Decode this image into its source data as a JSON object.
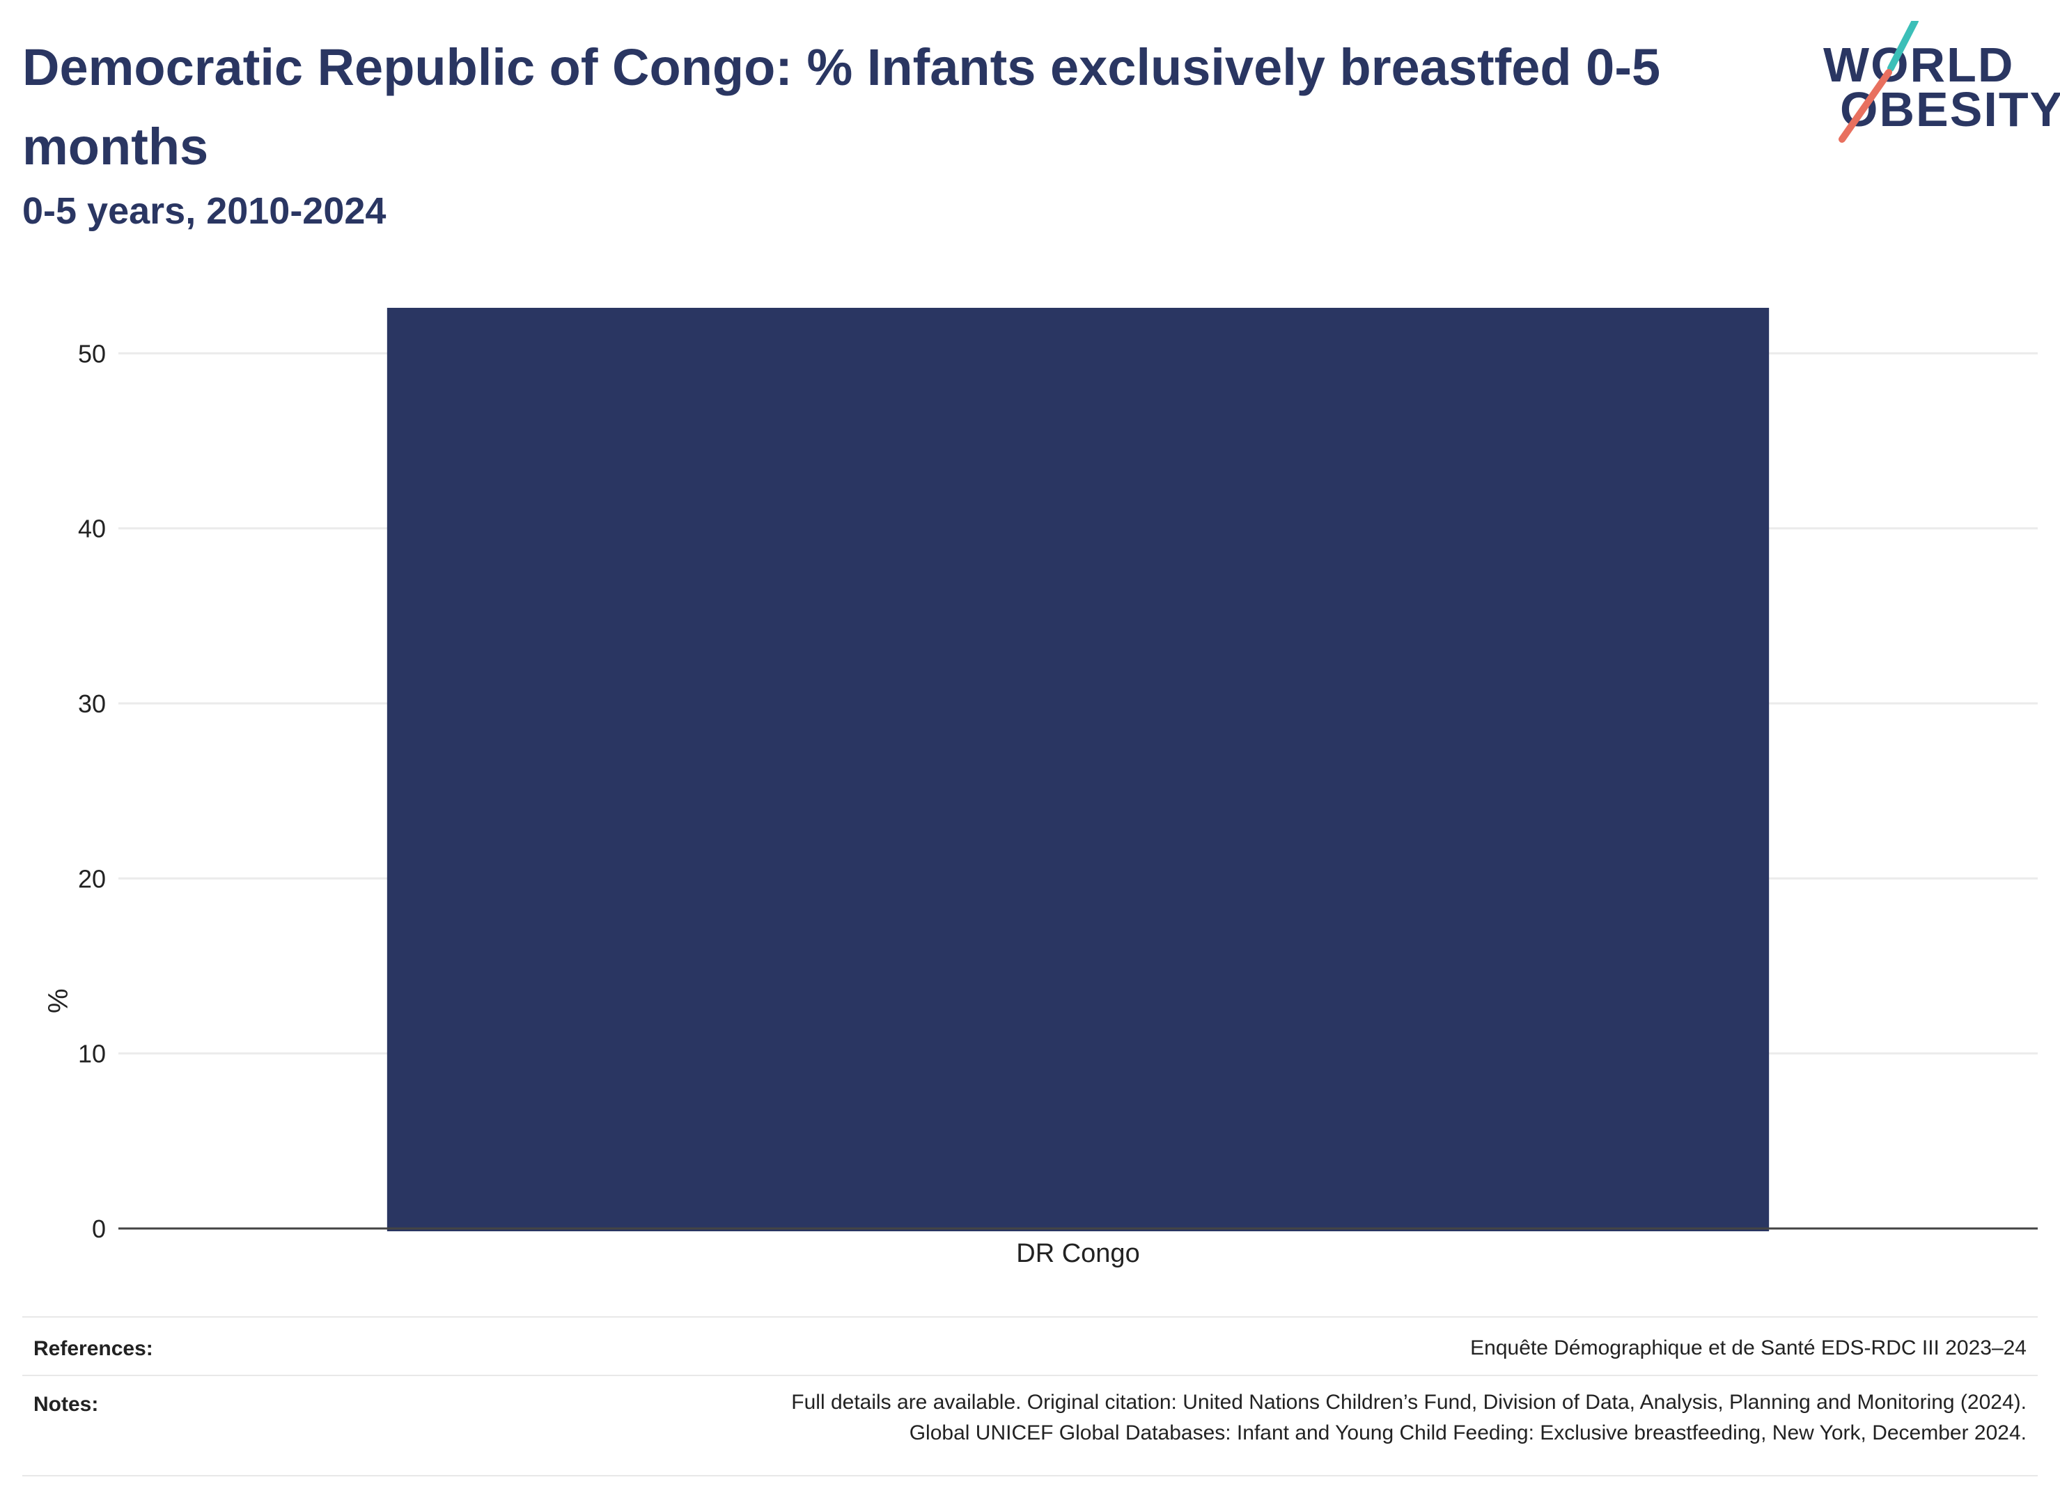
{
  "title": "Democratic Republic of Congo: % Infants exclusively breastfed 0-5 months",
  "subtitle": "0-5 years, 2010-2024",
  "logo": {
    "line1": "WORLD",
    "line2": "OBESITY"
  },
  "chart_data": {
    "type": "bar",
    "categories": [
      "DR Congo"
    ],
    "values": [
      52.6
    ],
    "xlabel": "",
    "ylabel": "%",
    "ylim": [
      0,
      52.6
    ],
    "yticks": [
      0,
      10,
      20,
      30,
      40,
      50
    ],
    "grid": true,
    "bar_color": "#2a3662"
  },
  "footer": {
    "references_label": "References:",
    "references_text": "Enquête Démographique et de Santé EDS-RDC III 2023–24",
    "notes_label": "Notes:",
    "notes_line1": "Full details are available. Original citation: United Nations Children’s Fund, Division of Data, Analysis, Planning and Monitoring (2024).",
    "notes_line2": "Global UNICEF Global Databases: Infant and Young Child Feeding: Exclusive breastfeeding, New York, December 2024."
  },
  "colors": {
    "title": "#2a3662",
    "accent_teal": "#3bbfb8",
    "accent_coral": "#e8705f",
    "grid": "#ebebeb"
  }
}
